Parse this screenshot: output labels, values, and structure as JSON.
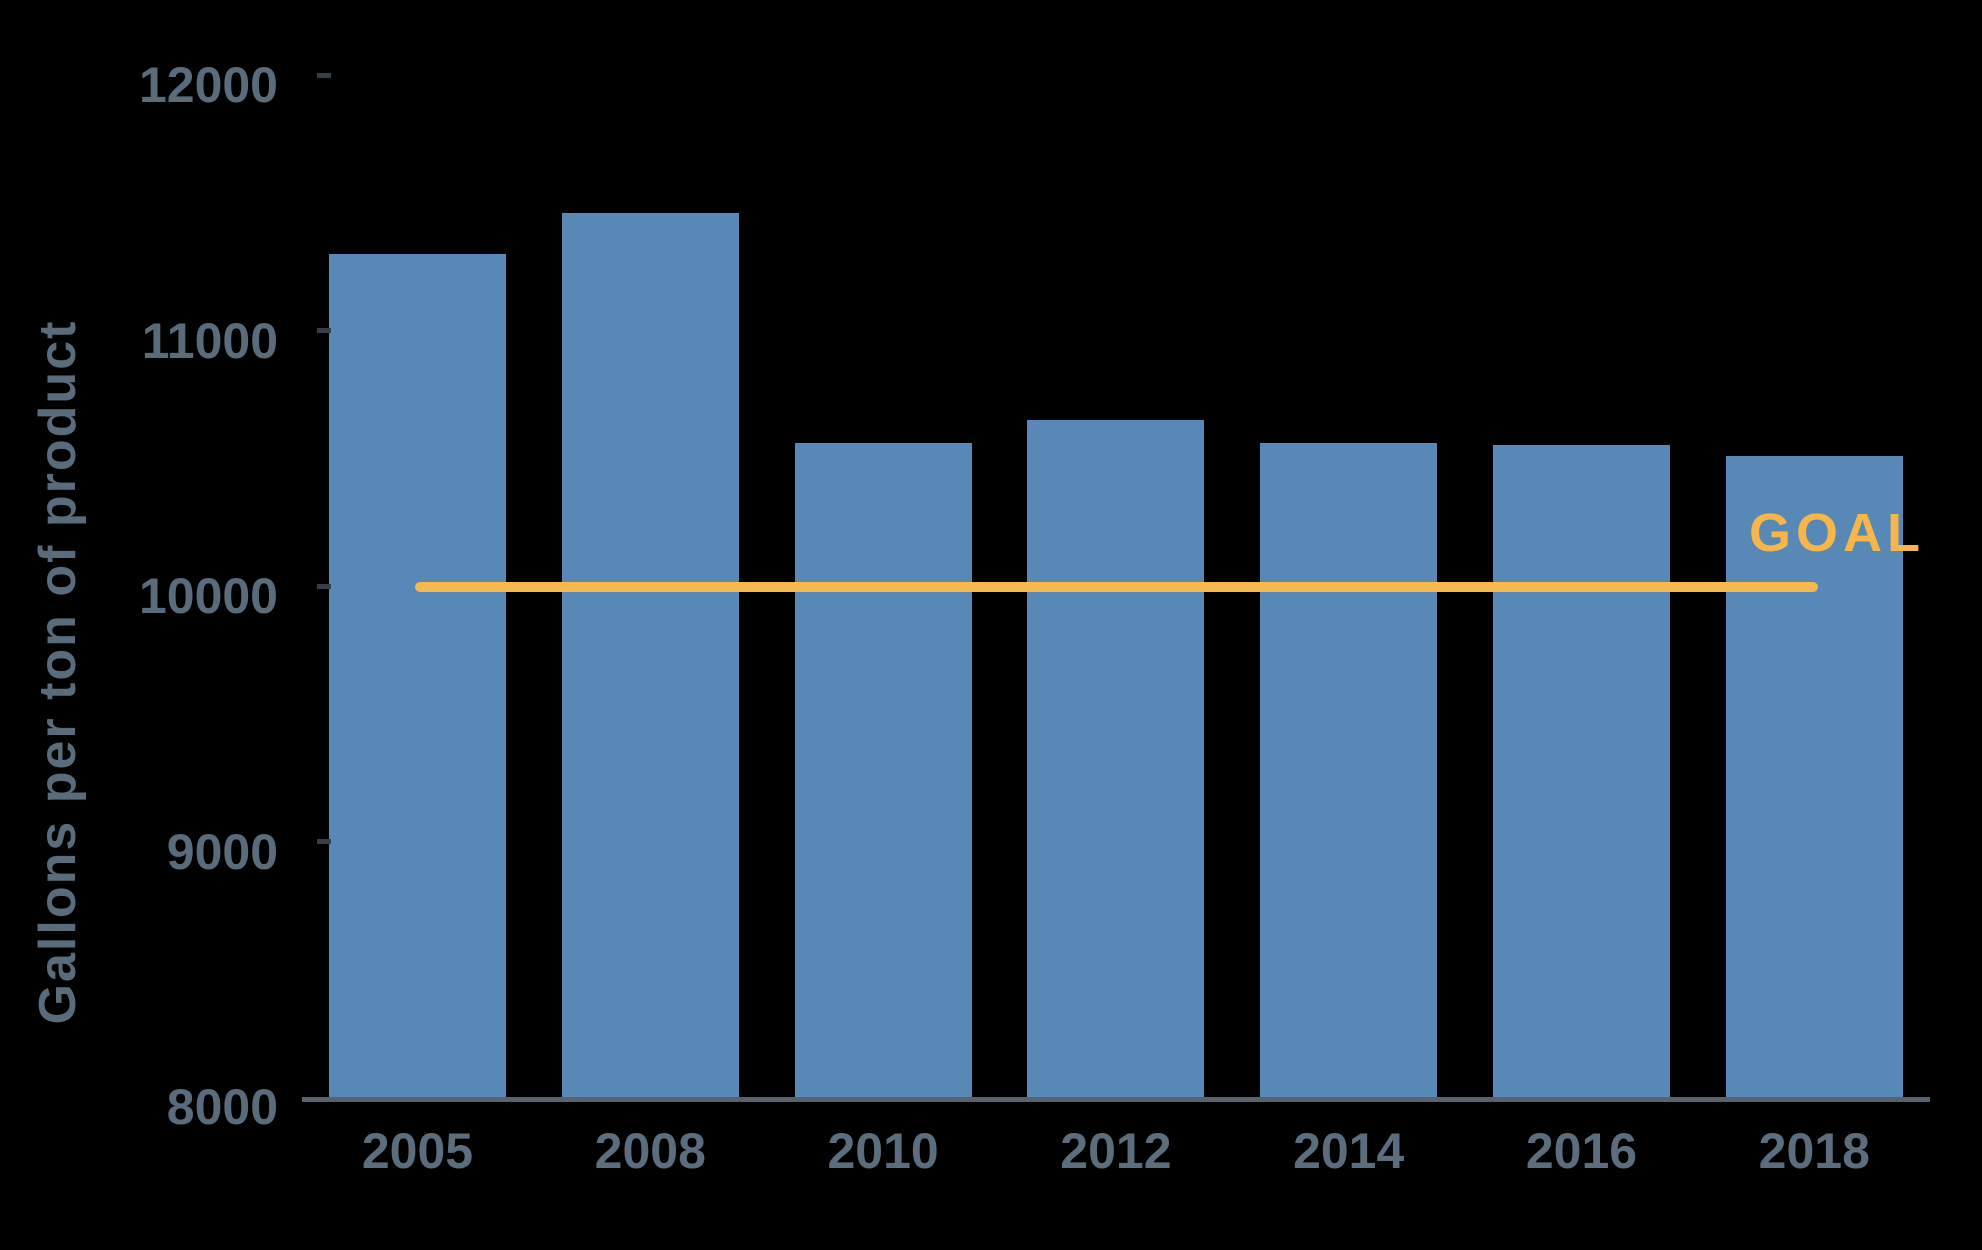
{
  "chart_data": {
    "type": "bar",
    "title": "",
    "xlabel": "",
    "ylabel": "Gallons per ton of product",
    "categories": [
      "2005",
      "2008",
      "2010",
      "2012",
      "2014",
      "2016",
      "2018"
    ],
    "values": [
      11300,
      11460,
      10560,
      10650,
      10560,
      10550,
      10510
    ],
    "ylim": [
      8000,
      12000
    ],
    "yticks": [
      8000,
      9000,
      10000,
      11000,
      12000
    ],
    "ytick_labels": [
      "8000",
      "9000",
      "10000",
      "11000",
      "12000"
    ],
    "grid": false,
    "legend": false,
    "background": "#000000",
    "goal_line": {
      "label": "GOAL",
      "value": 10000,
      "color": "#F7B84C"
    },
    "colors": {
      "bar": "#5889B6",
      "goal": "#F6B64C",
      "axis_label": "#5A6B7C",
      "x_label": "#5C6D7E",
      "axis_line": "#566472"
    }
  }
}
